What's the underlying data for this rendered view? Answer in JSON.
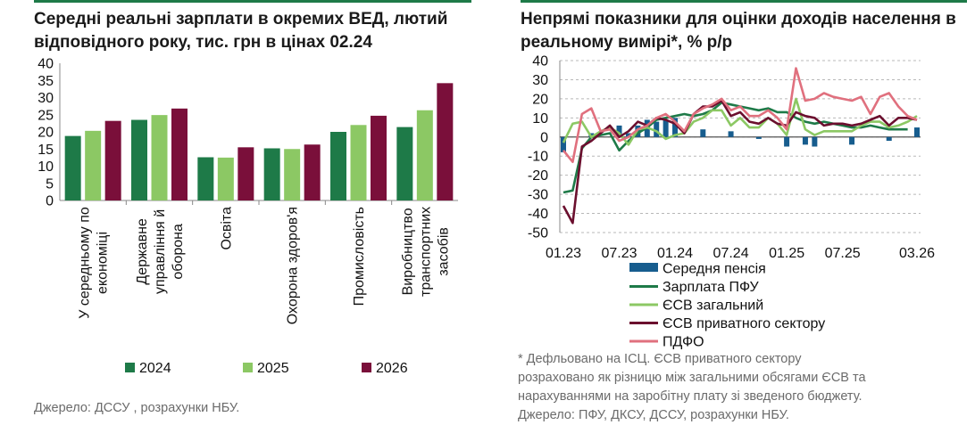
{
  "left": {
    "title": "Середні реальні зарплати в окремих ВЕД, лютий відповідного року, тис. грн в цінах 02.24",
    "source": "Джерело: ДССУ , розрахунки НБУ."
  },
  "right": {
    "title": "Непрямі показники для оцінки доходів населення в реальному вимірі*, % р/р",
    "footnote_lines": [
      "* Дефльовано на ІСЦ. ЄСВ приватного сектору",
      "розраховано як різницю між загальними обсягами ЄСВ та",
      "нарахуваннями на заробітну плату зі зведеного бюджету.",
      "Джерело: ПФУ, ДКСУ, ДССУ, розрахунки НБУ."
    ]
  },
  "colors": {
    "y2024": "#1e7a48",
    "y2025": "#8cc864",
    "y2026": "#7a0f3a",
    "pension": "#175d8e",
    "pfu": "#1e7a48",
    "esv_total": "#8cc864",
    "esv_private": "#6b0f2e",
    "pdfo": "#e0707e"
  },
  "chart_data": [
    {
      "type": "bar",
      "title": "Середні реальні зарплати в окремих ВЕД, лютий відповідного року, тис. грн в цінах 02.24",
      "categories": [
        [
          "У середньому по",
          "економіці"
        ],
        [
          "Державне",
          "управління й",
          "оборона"
        ],
        [
          "Освіта"
        ],
        [
          "Охорона здоров'я"
        ],
        [
          "Промисловість"
        ],
        [
          "Виробництво",
          "транспортних",
          "засобів"
        ]
      ],
      "series": [
        {
          "name": "2024",
          "values": [
            18.8,
            23.5,
            12.6,
            15.2,
            20.0,
            21.4
          ]
        },
        {
          "name": "2025",
          "values": [
            20.3,
            24.9,
            12.5,
            15.0,
            22.0,
            26.3
          ]
        },
        {
          "name": "2026",
          "values": [
            23.2,
            26.8,
            15.5,
            16.3,
            24.7,
            34.2
          ]
        }
      ],
      "ylim": [
        0,
        40
      ],
      "yticks": [
        "0",
        "5",
        "10",
        "15",
        "20",
        "25",
        "30",
        "35",
        "40"
      ],
      "legend": "bottom"
    },
    {
      "type": "line",
      "title": "Непрямі показники для оцінки доходів населення в реальному вимірі*, % р/р",
      "x_labels": [
        "01.23",
        "07.23",
        "01.24",
        "07.24",
        "01.25",
        "07.25",
        "03.26"
      ],
      "x_label_index": [
        0,
        6,
        12,
        18,
        24,
        30,
        38
      ],
      "ylim": [
        -50,
        40
      ],
      "yticks": [
        "-50",
        "-40",
        "-30",
        "-20",
        "-10",
        "0",
        "10",
        "20",
        "30",
        "40"
      ],
      "legend": "bottom-left",
      "bars": {
        "name": "Середня пенсія",
        "values": [
          -8,
          null,
          null,
          2,
          null,
          null,
          6,
          2,
          6,
          9,
          8,
          9,
          10,
          null,
          null,
          4,
          null,
          null,
          3,
          null,
          null,
          -1,
          null,
          null,
          -5,
          null,
          -4,
          -5,
          null,
          null,
          null,
          -4,
          null,
          null,
          null,
          -2,
          null,
          null,
          5
        ]
      },
      "series": [
        {
          "name": "Зарплата ПФУ",
          "values": [
            -29,
            -28,
            -6,
            0,
            1,
            2,
            -7,
            -2,
            2,
            5,
            9,
            10,
            11,
            12,
            11,
            12,
            14,
            18,
            17,
            16,
            15,
            14,
            15,
            13,
            13,
            10,
            8,
            7,
            8,
            7,
            6,
            5,
            5,
            6,
            5,
            4,
            4,
            4,
            null
          ]
        },
        {
          "name": "ЄСВ загальний",
          "values": [
            -3,
            7,
            8,
            0,
            3,
            5,
            2,
            -4,
            4,
            5,
            3,
            -1,
            1,
            2,
            8,
            10,
            14,
            14,
            6,
            10,
            5,
            5,
            10,
            7,
            1,
            20,
            4,
            1,
            3,
            3,
            3,
            3,
            6,
            8,
            8,
            5,
            6,
            8,
            11
          ]
        },
        {
          "name": "ЄСВ приватного сектору",
          "values": [
            -36,
            -45,
            -5,
            -2,
            2,
            6,
            0,
            3,
            8,
            6,
            10,
            9,
            7,
            2,
            12,
            16,
            16,
            19,
            11,
            13,
            8,
            7,
            10,
            7,
            6,
            13,
            11,
            10,
            6,
            7,
            7,
            6,
            7,
            9,
            11,
            6,
            10,
            10,
            9
          ]
        },
        {
          "name": "ПДФО",
          "values": [
            -7,
            -13,
            12,
            15,
            3,
            4,
            -2,
            0,
            4,
            6,
            10,
            12,
            8,
            3,
            12,
            15,
            17,
            20,
            14,
            16,
            11,
            11,
            14,
            10,
            4,
            36,
            19,
            20,
            23,
            21,
            20,
            19,
            21,
            12,
            21,
            23,
            16,
            11,
            9
          ]
        }
      ]
    }
  ]
}
